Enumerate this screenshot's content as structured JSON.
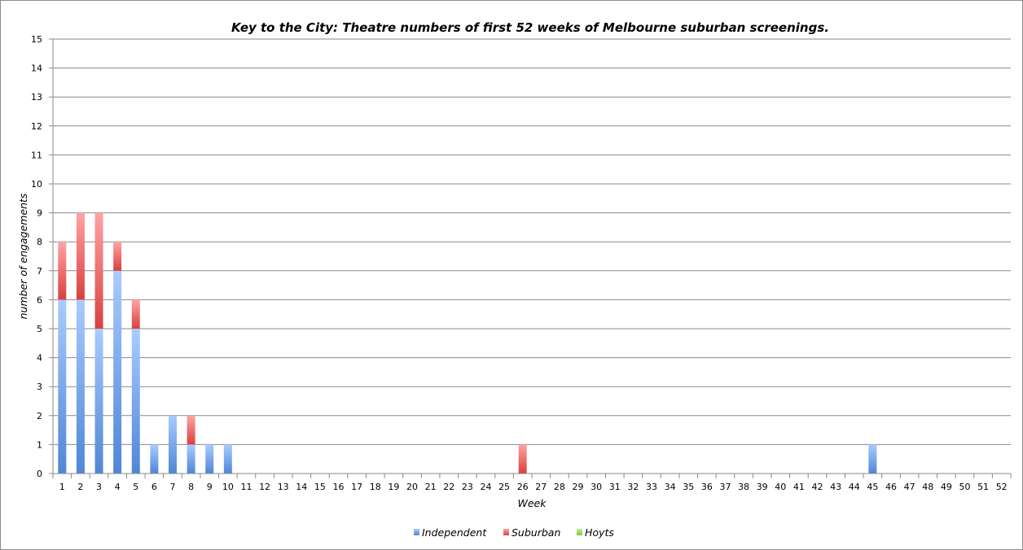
{
  "chart_data": {
    "type": "bar",
    "stacked": true,
    "title": "Key to the City: Theatre numbers of first 52 weeks of Melbourne suburban screenings.",
    "xlabel": "Week",
    "ylabel": "number of engagements",
    "ylim": [
      0,
      15
    ],
    "y_ticks": [
      0,
      1,
      2,
      3,
      4,
      5,
      6,
      7,
      8,
      9,
      10,
      11,
      12,
      13,
      14,
      15
    ],
    "grid": true,
    "legend_position": "bottom",
    "categories": [
      "1",
      "2",
      "3",
      "4",
      "5",
      "6",
      "7",
      "8",
      "9",
      "10",
      "11",
      "12",
      "13",
      "14",
      "15",
      "16",
      "17",
      "18",
      "19",
      "20",
      "21",
      "22",
      "23",
      "24",
      "25",
      "26",
      "27",
      "28",
      "29",
      "30",
      "31",
      "32",
      "33",
      "34",
      "35",
      "36",
      "37",
      "38",
      "39",
      "40",
      "41",
      "42",
      "43",
      "44",
      "45",
      "46",
      "47",
      "48",
      "49",
      "50",
      "51",
      "52"
    ],
    "series": [
      {
        "name": "Independent",
        "color": "#4f86d6",
        "color_light": "#a9cbff",
        "values": [
          6,
          6,
          5,
          7,
          5,
          1,
          2,
          1,
          1,
          1,
          0,
          0,
          0,
          0,
          0,
          0,
          0,
          0,
          0,
          0,
          0,
          0,
          0,
          0,
          0,
          0,
          0,
          0,
          0,
          0,
          0,
          0,
          0,
          0,
          0,
          0,
          0,
          0,
          0,
          0,
          0,
          0,
          0,
          0,
          1,
          0,
          0,
          0,
          0,
          0,
          0,
          0
        ]
      },
      {
        "name": "Suburban",
        "color": "#d9403f",
        "color_light": "#ffa4a4",
        "values": [
          2,
          3,
          4,
          1,
          1,
          0,
          0,
          1,
          0,
          0,
          0,
          0,
          0,
          0,
          0,
          0,
          0,
          0,
          0,
          0,
          0,
          0,
          0,
          0,
          0,
          1,
          0,
          0,
          0,
          0,
          0,
          0,
          0,
          0,
          0,
          0,
          0,
          0,
          0,
          0,
          0,
          0,
          0,
          0,
          0,
          0,
          0,
          0,
          0,
          0,
          0,
          0
        ]
      },
      {
        "name": "Hoyts",
        "color": "#7bc63b",
        "color_light": "#c5ef9c",
        "values": [
          0,
          0,
          0,
          0,
          0,
          0,
          0,
          0,
          0,
          0,
          0,
          0,
          0,
          0,
          0,
          0,
          0,
          0,
          0,
          0,
          0,
          0,
          0,
          0,
          0,
          0,
          0,
          0,
          0,
          0,
          0,
          0,
          0,
          0,
          0,
          0,
          0,
          0,
          0,
          0,
          0,
          0,
          0,
          0,
          0,
          0,
          0,
          0,
          0,
          0,
          0,
          0
        ]
      }
    ]
  }
}
